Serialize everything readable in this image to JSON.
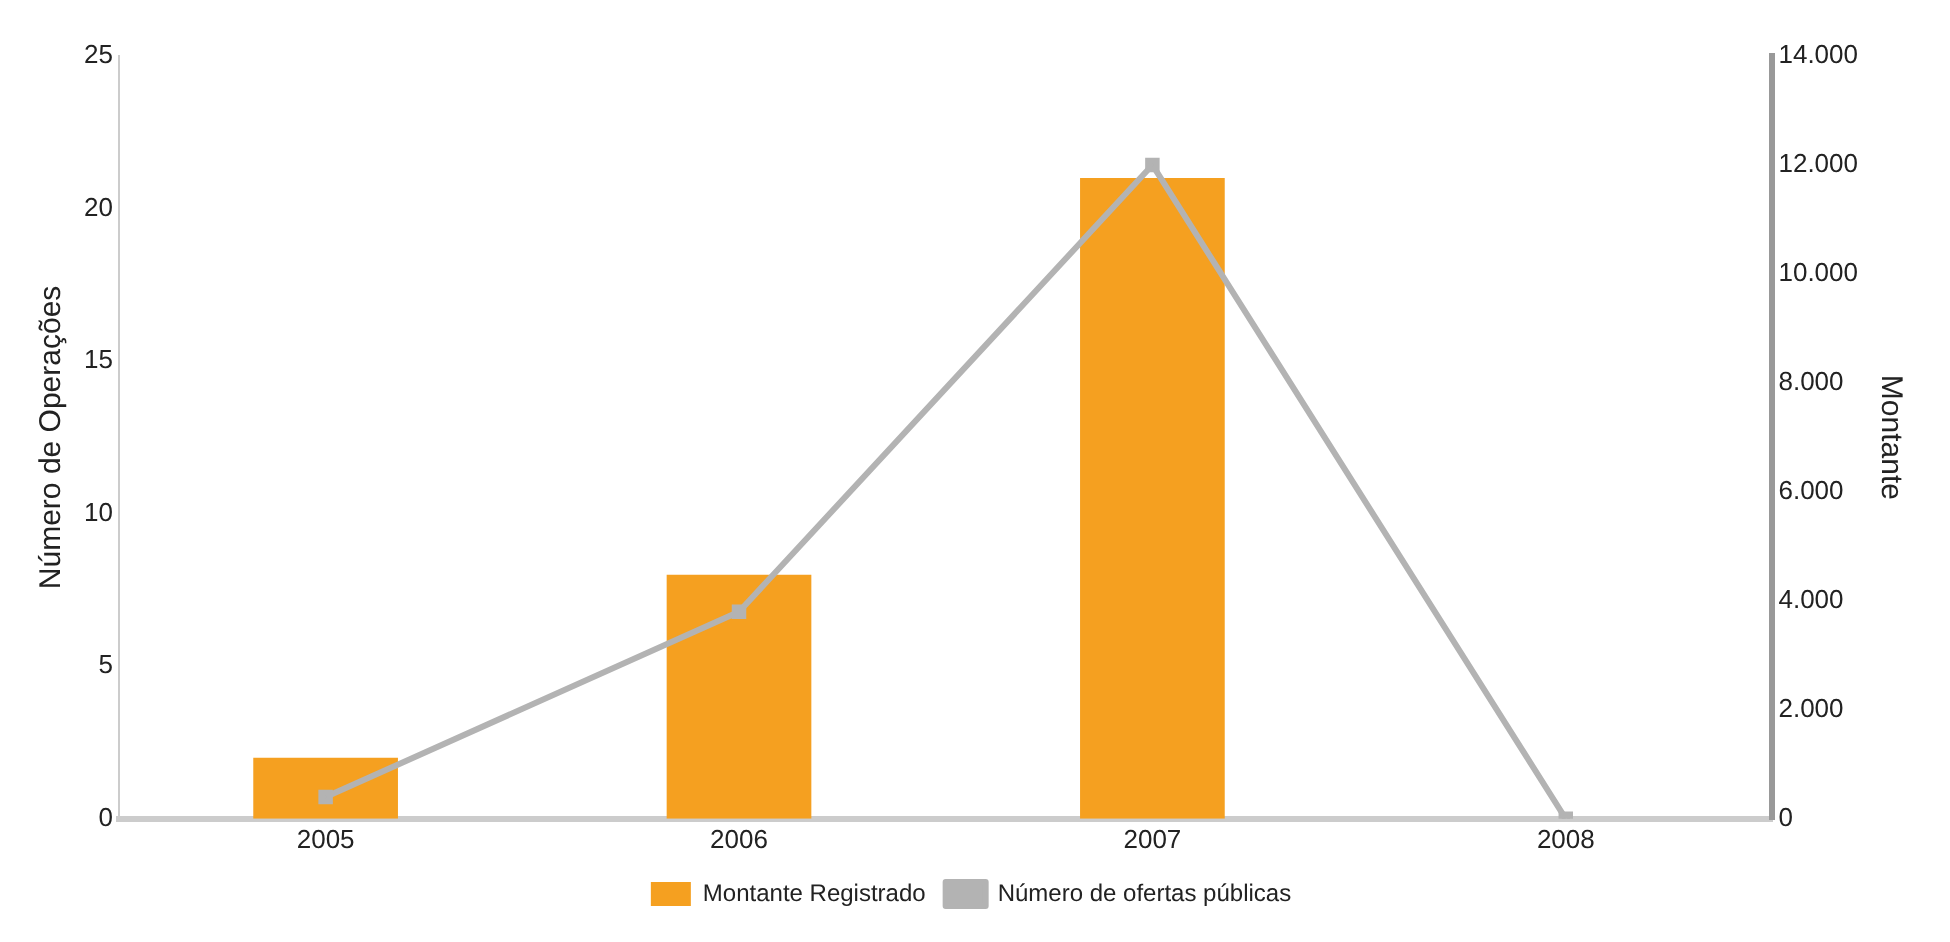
{
  "chart_data": {
    "type": "bar",
    "categories": [
      "2005",
      "2006",
      "2007",
      "2008"
    ],
    "ylabel": "Número de Operações",
    "y2label": "Montante",
    "series": [
      {
        "name": "Montante Registrado",
        "color": "#f5a020",
        "values": [
          2,
          8,
          21,
          null
        ]
      },
      {
        "name": "Número de ofertas públicas",
        "type": "line",
        "axis": "y2",
        "color": "#b3b3b3",
        "values": [
          400,
          3800,
          12000,
          0
        ],
        "marker": "square"
      }
    ],
    "ylim": [
      0,
      25
    ],
    "yticks": [
      0,
      5,
      10,
      15,
      20,
      25
    ],
    "y2lim": [
      0,
      14000
    ],
    "y2ticks": [
      {
        "value": 0,
        "label": "0"
      },
      {
        "value": 2000,
        "label": "2.000"
      },
      {
        "value": 4000,
        "label": "4.000"
      },
      {
        "value": 6000,
        "label": "6.000"
      },
      {
        "value": 8000,
        "label": "8.000"
      },
      {
        "value": 10000,
        "label": "10.000"
      },
      {
        "value": 12000,
        "label": "12.000"
      },
      {
        "value": 14000,
        "label": "14.000"
      }
    ],
    "grid": false,
    "legend": "bottom"
  }
}
